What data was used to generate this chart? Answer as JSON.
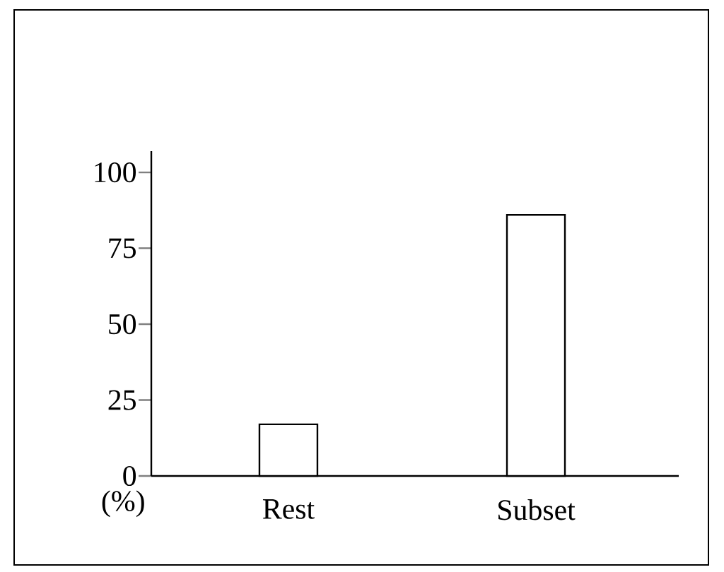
{
  "chart_data": {
    "type": "bar",
    "ylabel": "(%)",
    "categories": [
      "Rest",
      "Subset"
    ],
    "values": [
      17,
      86
    ],
    "color": "#ffffff",
    "ylim": [
      0,
      107
    ],
    "yticks": [
      0,
      25,
      50,
      75,
      100
    ],
    "grid": false
  }
}
